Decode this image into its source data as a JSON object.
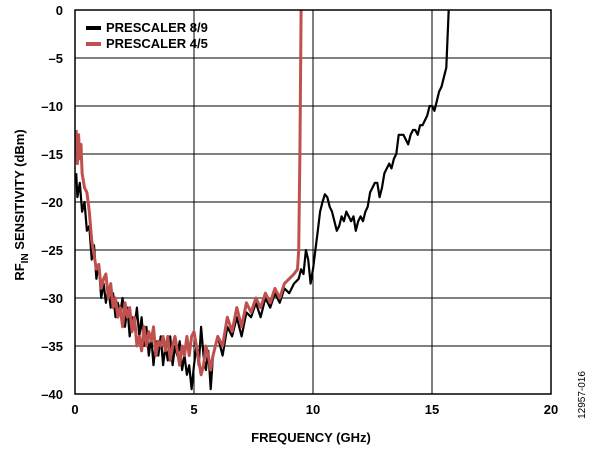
{
  "figure_id": "12957-016",
  "chart_data": {
    "type": "line",
    "xlabel": "FREQUENCY (GHz)",
    "ylabel_main": "RF",
    "ylabel_sub": "IN",
    "ylabel_rest": " SENSITIVITY (dBm)",
    "xlim": [
      0,
      20
    ],
    "ylim": [
      -40,
      0
    ],
    "x_ticks": [
      0,
      5,
      10,
      15,
      20
    ],
    "y_ticks": [
      0,
      -5,
      -10,
      -15,
      -20,
      -25,
      -30,
      -35,
      -40
    ],
    "x_tick_labels": [
      "0",
      "5",
      "10",
      "15",
      "20"
    ],
    "y_tick_labels": [
      "0",
      "–5",
      "–10",
      "–15",
      "–20",
      "–25",
      "–30",
      "–35",
      "–40"
    ],
    "grid": true,
    "legend_position": "top-left",
    "series": [
      {
        "name": "PRESCALER 8/9",
        "color": "#000000",
        "points": [
          [
            0.05,
            -17
          ],
          [
            0.1,
            -19.5
          ],
          [
            0.2,
            -18
          ],
          [
            0.3,
            -21
          ],
          [
            0.4,
            -20
          ],
          [
            0.5,
            -23
          ],
          [
            0.6,
            -22.5
          ],
          [
            0.7,
            -26
          ],
          [
            0.8,
            -24.5
          ],
          [
            0.9,
            -28
          ],
          [
            1.0,
            -26.5
          ],
          [
            1.1,
            -30
          ],
          [
            1.2,
            -28.5
          ],
          [
            1.3,
            -30.5
          ],
          [
            1.4,
            -29
          ],
          [
            1.5,
            -31
          ],
          [
            1.6,
            -29.5
          ],
          [
            1.7,
            -32
          ],
          [
            1.8,
            -30.5
          ],
          [
            1.9,
            -31.5
          ],
          [
            2.0,
            -30
          ],
          [
            2.1,
            -33
          ],
          [
            2.2,
            -31
          ],
          [
            2.3,
            -34
          ],
          [
            2.4,
            -32
          ],
          [
            2.5,
            -33
          ],
          [
            2.6,
            -31
          ],
          [
            2.7,
            -34
          ],
          [
            2.8,
            -32
          ],
          [
            2.9,
            -35
          ],
          [
            3.0,
            -33
          ],
          [
            3.1,
            -36
          ],
          [
            3.2,
            -34
          ],
          [
            3.3,
            -37
          ],
          [
            3.4,
            -34.5
          ],
          [
            3.5,
            -36
          ],
          [
            3.6,
            -34
          ],
          [
            3.7,
            -37
          ],
          [
            3.8,
            -35
          ],
          [
            3.9,
            -36.5
          ],
          [
            4.0,
            -34
          ],
          [
            4.1,
            -37
          ],
          [
            4.2,
            -35
          ],
          [
            4.3,
            -36
          ],
          [
            4.4,
            -34.5
          ],
          [
            4.5,
            -37.5
          ],
          [
            4.6,
            -36
          ],
          [
            4.7,
            -38
          ],
          [
            4.8,
            -37
          ],
          [
            4.9,
            -39.5
          ],
          [
            5.0,
            -37
          ],
          [
            5.1,
            -35
          ],
          [
            5.2,
            -37
          ],
          [
            5.3,
            -33
          ],
          [
            5.4,
            -36
          ],
          [
            5.5,
            -37.5
          ],
          [
            5.6,
            -35.5
          ],
          [
            5.7,
            -39.5
          ],
          [
            5.8,
            -36
          ],
          [
            5.9,
            -35
          ],
          [
            6.0,
            -34
          ],
          [
            6.2,
            -36
          ],
          [
            6.4,
            -33
          ],
          [
            6.6,
            -34
          ],
          [
            6.8,
            -32
          ],
          [
            7.0,
            -34
          ],
          [
            7.2,
            -31.5
          ],
          [
            7.4,
            -32
          ],
          [
            7.6,
            -30.5
          ],
          [
            7.8,
            -32
          ],
          [
            8.0,
            -30
          ],
          [
            8.2,
            -31
          ],
          [
            8.4,
            -29.5
          ],
          [
            8.6,
            -30.5
          ],
          [
            8.8,
            -29
          ],
          [
            9.0,
            -29.5
          ],
          [
            9.2,
            -28.5
          ],
          [
            9.4,
            -28
          ],
          [
            9.5,
            -27
          ],
          [
            9.6,
            -27.5
          ],
          [
            9.7,
            -25
          ],
          [
            9.8,
            -26
          ],
          [
            9.9,
            -28.5
          ],
          [
            10.0,
            -27
          ],
          [
            10.1,
            -25
          ],
          [
            10.2,
            -23
          ],
          [
            10.3,
            -21
          ],
          [
            10.4,
            -20
          ],
          [
            10.5,
            -19.2
          ],
          [
            10.6,
            -19.5
          ],
          [
            10.7,
            -20.5
          ],
          [
            10.8,
            -21
          ],
          [
            10.9,
            -22
          ],
          [
            11.0,
            -23
          ],
          [
            11.1,
            -22.5
          ],
          [
            11.2,
            -21.5
          ],
          [
            11.3,
            -22
          ],
          [
            11.4,
            -21
          ],
          [
            11.5,
            -21.5
          ],
          [
            11.6,
            -22
          ],
          [
            11.7,
            -21.5
          ],
          [
            11.8,
            -23
          ],
          [
            11.9,
            -22
          ],
          [
            12.0,
            -21.5
          ],
          [
            12.1,
            -22
          ],
          [
            12.2,
            -21
          ],
          [
            12.3,
            -20.5
          ],
          [
            12.4,
            -19
          ],
          [
            12.5,
            -18.5
          ],
          [
            12.6,
            -18
          ],
          [
            12.7,
            -18
          ],
          [
            12.8,
            -19.5
          ],
          [
            12.9,
            -18.5
          ],
          [
            13.0,
            -17
          ],
          [
            13.1,
            -16.5
          ],
          [
            13.2,
            -16
          ],
          [
            13.3,
            -16.5
          ],
          [
            13.4,
            -15.5
          ],
          [
            13.5,
            -15
          ],
          [
            13.6,
            -13
          ],
          [
            13.7,
            -13
          ],
          [
            13.8,
            -13
          ],
          [
            13.9,
            -13.5
          ],
          [
            14.0,
            -14
          ],
          [
            14.1,
            -13
          ],
          [
            14.2,
            -12.5
          ],
          [
            14.3,
            -12.5
          ],
          [
            14.4,
            -13
          ],
          [
            14.5,
            -12
          ],
          [
            14.6,
            -12
          ],
          [
            14.7,
            -11.5
          ],
          [
            14.8,
            -11
          ],
          [
            14.9,
            -10
          ],
          [
            15.0,
            -10
          ],
          [
            15.1,
            -10.5
          ],
          [
            15.2,
            -9.5
          ],
          [
            15.3,
            -8.5
          ],
          [
            15.4,
            -8
          ],
          [
            15.5,
            -7
          ],
          [
            15.6,
            -6
          ],
          [
            15.65,
            -3
          ],
          [
            15.7,
            0
          ]
        ]
      },
      {
        "name": "PRESCALER 4/5",
        "color": "#c0504d",
        "points": [
          [
            0.05,
            -12.5
          ],
          [
            0.1,
            -16
          ],
          [
            0.15,
            -13
          ],
          [
            0.2,
            -15.5
          ],
          [
            0.25,
            -14
          ],
          [
            0.3,
            -17
          ],
          [
            0.4,
            -18.5
          ],
          [
            0.5,
            -19
          ],
          [
            0.6,
            -21
          ],
          [
            0.7,
            -24
          ],
          [
            0.8,
            -25.5
          ],
          [
            0.9,
            -27
          ],
          [
            1.0,
            -26.5
          ],
          [
            1.1,
            -29
          ],
          [
            1.2,
            -28
          ],
          [
            1.3,
            -27.5
          ],
          [
            1.4,
            -30
          ],
          [
            1.5,
            -28.5
          ],
          [
            1.6,
            -31
          ],
          [
            1.7,
            -30
          ],
          [
            1.8,
            -32
          ],
          [
            1.9,
            -31
          ],
          [
            2.0,
            -33
          ],
          [
            2.1,
            -30.5
          ],
          [
            2.2,
            -32
          ],
          [
            2.3,
            -31
          ],
          [
            2.4,
            -33.5
          ],
          [
            2.5,
            -32
          ],
          [
            2.6,
            -35
          ],
          [
            2.7,
            -34
          ],
          [
            2.8,
            -35.5
          ],
          [
            2.9,
            -33
          ],
          [
            3.0,
            -35
          ],
          [
            3.1,
            -33.5
          ],
          [
            3.2,
            -34.5
          ],
          [
            3.3,
            -33
          ],
          [
            3.4,
            -36
          ],
          [
            3.5,
            -34.5
          ],
          [
            3.6,
            -35
          ],
          [
            3.7,
            -34
          ],
          [
            3.8,
            -35.5
          ],
          [
            3.9,
            -34
          ],
          [
            4.0,
            -36.5
          ],
          [
            4.1,
            -35
          ],
          [
            4.2,
            -34
          ],
          [
            4.3,
            -35.5
          ],
          [
            4.4,
            -37
          ],
          [
            4.5,
            -35
          ],
          [
            4.6,
            -36
          ],
          [
            4.7,
            -34
          ],
          [
            4.8,
            -36
          ],
          [
            4.9,
            -34
          ],
          [
            5.0,
            -33.5
          ],
          [
            5.1,
            -35
          ],
          [
            5.2,
            -36.5
          ],
          [
            5.3,
            -38
          ],
          [
            5.4,
            -37
          ],
          [
            5.5,
            -35
          ],
          [
            5.6,
            -36
          ],
          [
            5.7,
            -37.5
          ],
          [
            5.8,
            -36
          ],
          [
            5.9,
            -35
          ],
          [
            6.0,
            -34
          ],
          [
            6.2,
            -35
          ],
          [
            6.4,
            -32
          ],
          [
            6.6,
            -33.5
          ],
          [
            6.8,
            -31
          ],
          [
            7.0,
            -33
          ],
          [
            7.2,
            -30.5
          ],
          [
            7.4,
            -31.5
          ],
          [
            7.6,
            -30
          ],
          [
            7.8,
            -31
          ],
          [
            8.0,
            -29.5
          ],
          [
            8.2,
            -30.5
          ],
          [
            8.4,
            -29
          ],
          [
            8.6,
            -30
          ],
          [
            8.8,
            -28.5
          ],
          [
            9.0,
            -28
          ],
          [
            9.2,
            -27.5
          ],
          [
            9.35,
            -27
          ],
          [
            9.4,
            -25
          ],
          [
            9.45,
            -15
          ],
          [
            9.5,
            0
          ]
        ]
      }
    ]
  }
}
